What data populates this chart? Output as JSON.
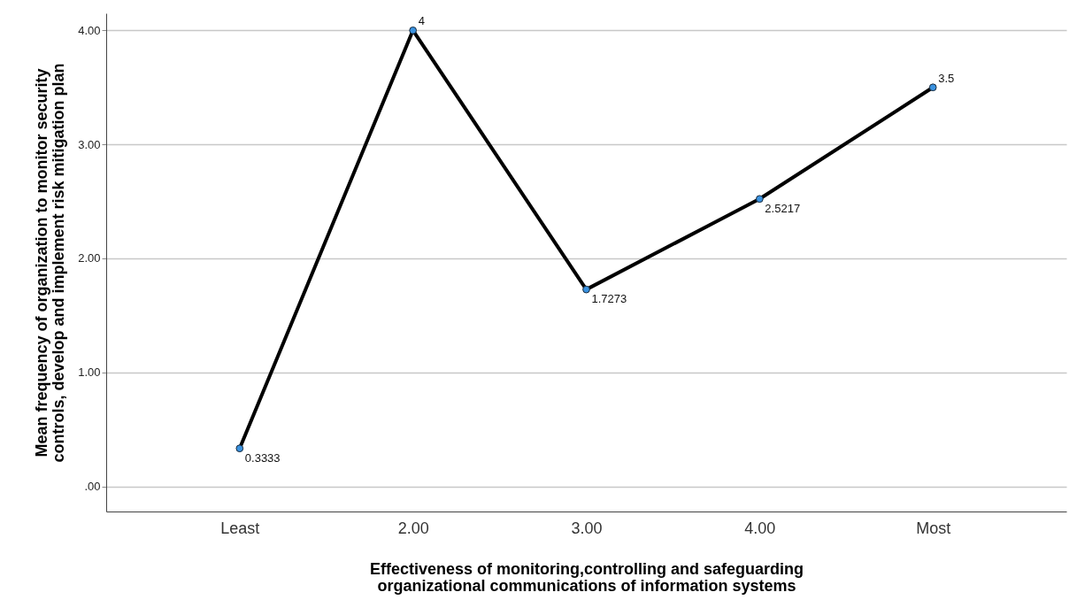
{
  "chart_data": {
    "type": "line",
    "xlabel": "Effectiveness of monitoring,controlling and safeguarding organizational communications of information systems",
    "ylabel": "Mean frequency of organization to monitor security controls, develop and implement risk mitigation plan",
    "categories": [
      "Least",
      "2.00",
      "3.00",
      "4.00",
      "Most"
    ],
    "series": [
      {
        "color": "#000000",
        "values": [
          0.3333,
          4,
          1.7273,
          2.5217,
          3.5
        ]
      }
    ],
    "ylim": [
      -0.22,
      4.15
    ],
    "yticks": [
      {
        "value": 0,
        "label": ".00"
      },
      {
        "value": 1,
        "label": "1.00"
      },
      {
        "value": 2,
        "label": "2.00"
      },
      {
        "value": 3,
        "label": "3.00"
      },
      {
        "value": 4,
        "label": "4.00"
      }
    ],
    "grid": "y",
    "marker": "circle",
    "line_style": "solid",
    "data_labels": true
  }
}
